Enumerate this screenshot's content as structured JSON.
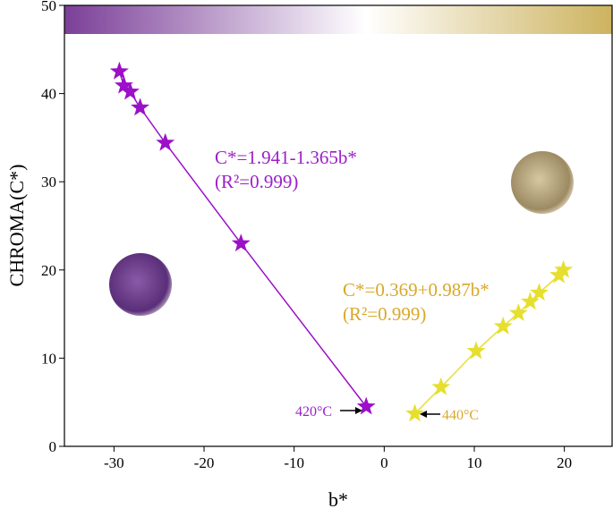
{
  "chart_data": {
    "type": "scatter",
    "x_label": "b*",
    "y_label": "CHROMA(C*)",
    "xlim": [
      -35.5,
      25.3
    ],
    "ylim": [
      0,
      50
    ],
    "xticks": [
      -30,
      -20,
      -10,
      0,
      10,
      20
    ],
    "yticks": [
      0,
      10,
      20,
      30,
      40,
      50
    ],
    "series": [
      {
        "name": "C*=1.941-1.365b*",
        "color": "#9b10c8",
        "x": [
          -29.4,
          -28.9,
          -28.2,
          -27.1,
          -24.3,
          -15.9,
          -2.0
        ],
        "values": [
          42.5,
          40.9,
          40.2,
          38.4,
          34.4,
          23.0,
          4.5
        ]
      },
      {
        "name": "C*=0.369+0.987b*",
        "color": "#e6df2e",
        "x": [
          3.4,
          6.3,
          10.2,
          13.2,
          14.9,
          16.2,
          17.2,
          19.4,
          19.9
        ],
        "values": [
          3.7,
          6.7,
          10.8,
          13.6,
          15.1,
          16.4,
          17.4,
          19.4,
          20.0
        ]
      }
    ],
    "annotations": [
      "(R²=0.999)",
      "(R²=0.999)",
      "420°C",
      "440°C"
    ],
    "annotation_colors": [
      "#9b20c8",
      "#d9a82a"
    ]
  }
}
